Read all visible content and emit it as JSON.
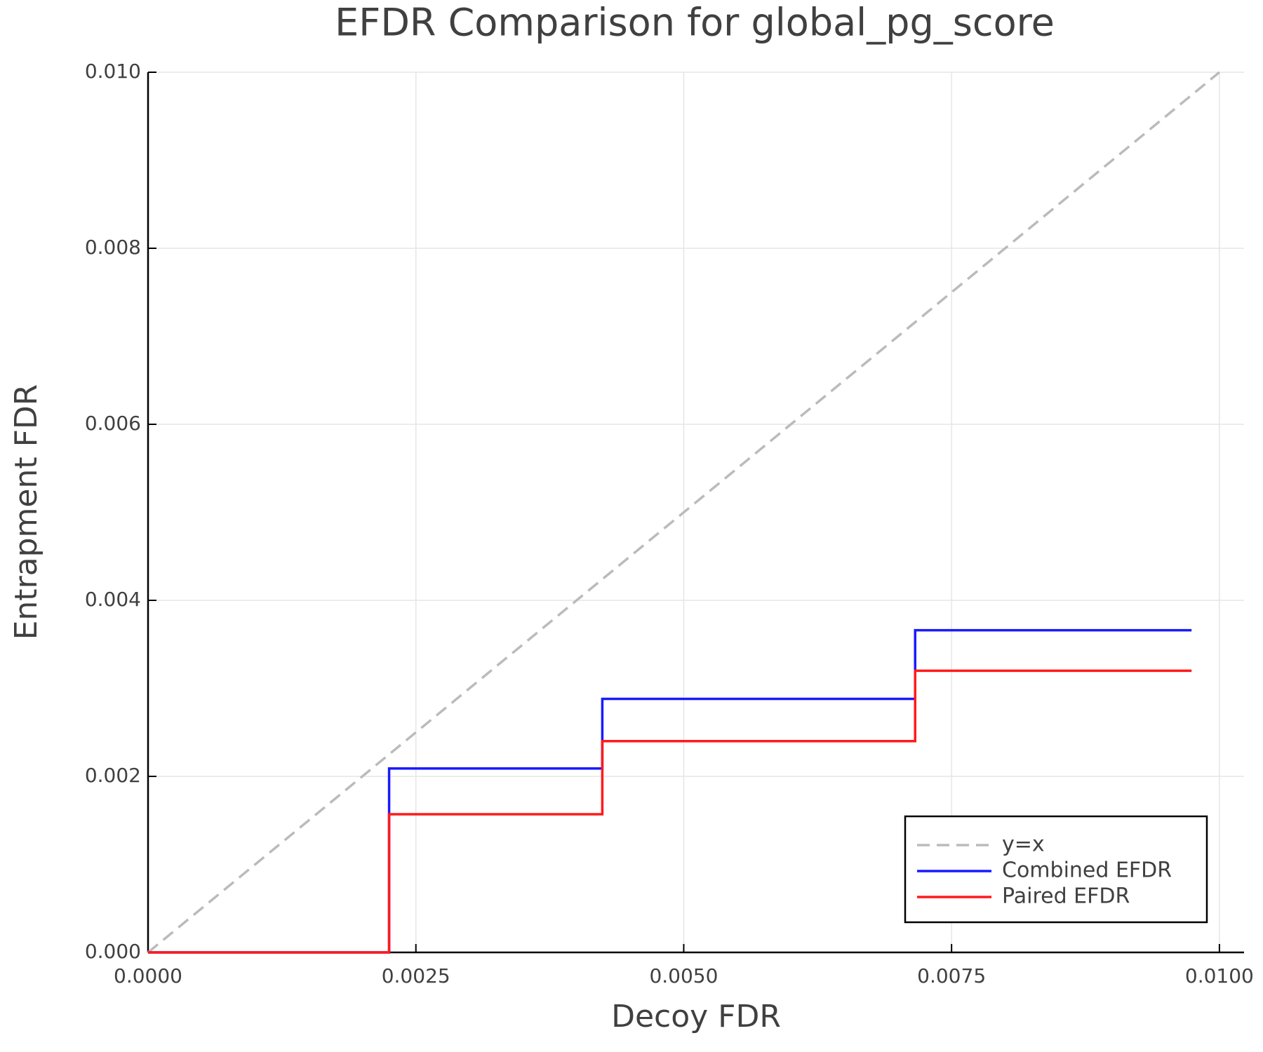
{
  "chart_data": {
    "type": "line",
    "title": "EFDR Comparison for global_pg_score",
    "x_label": "Decoy FDR",
    "y_label": "Entrapment FDR",
    "xlim": [
      0,
      0.01023
    ],
    "ylim": [
      0,
      0.01
    ],
    "xticks": [
      {
        "value": 0,
        "label": "0.0000"
      },
      {
        "value": 0.0025,
        "label": "0.0025"
      },
      {
        "value": 0.005,
        "label": "0.0050"
      },
      {
        "value": 0.0075,
        "label": "0.0075"
      },
      {
        "value": 0.01,
        "label": "0.0100"
      }
    ],
    "yticks": [
      {
        "value": 0,
        "label": "0.000"
      },
      {
        "value": 0.002,
        "label": "0.002"
      },
      {
        "value": 0.004,
        "label": "0.004"
      },
      {
        "value": 0.006,
        "label": "0.006"
      },
      {
        "value": 0.008,
        "label": "0.008"
      },
      {
        "value": 0.01,
        "label": "0.010"
      }
    ],
    "grid": true,
    "legend": "lower right",
    "series": [
      {
        "name": "y=x",
        "color": "#bbbbbb",
        "dash": true,
        "x": [
          0,
          0.01
        ],
        "values": [
          0,
          0.01
        ]
      },
      {
        "name": "Combined EFDR",
        "color": "#1a1aff",
        "x": [
          0,
          0.00225,
          0.00225,
          0.00424,
          0.00424,
          0.00716,
          0.00716,
          0.00974
        ],
        "values": [
          0,
          0,
          0.00209,
          0.00209,
          0.00288,
          0.00288,
          0.00366,
          0.00366
        ]
      },
      {
        "name": "Paired EFDR",
        "color": "#ff1a1a",
        "x": [
          0,
          0.00225,
          0.00225,
          0.00424,
          0.00424,
          0.00716,
          0.00716,
          0.00974
        ],
        "values": [
          0,
          0,
          0.00157,
          0.00157,
          0.0024,
          0.0024,
          0.0032,
          0.0032
        ]
      }
    ]
  }
}
